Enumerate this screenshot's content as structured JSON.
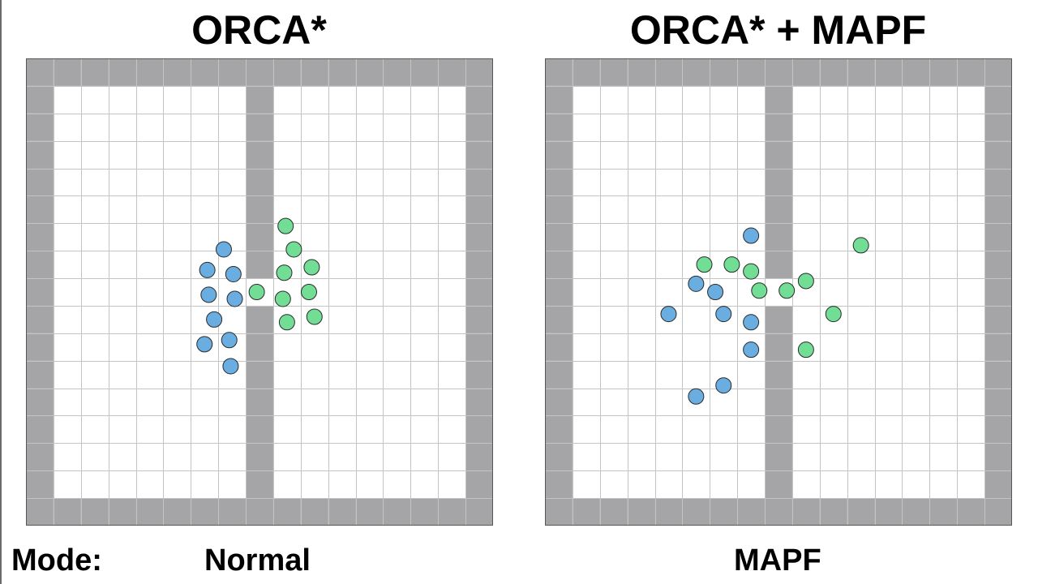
{
  "titles": {
    "left": "ORCA*",
    "right": "ORCA* + MAPF"
  },
  "footer": {
    "mode_label": "Mode:",
    "left_mode": "Normal",
    "right_mode": "MAPF"
  },
  "colors": {
    "wall": "#a5a5a8",
    "free": "#ffffff",
    "grid_line": "#c4c4c4",
    "border": "#555555",
    "agent_blue": "#6aade0",
    "agent_green": "#72dd95",
    "agent_outline": "#2a2a2a"
  },
  "map": {
    "cols": 17,
    "rows": 17,
    "note_cells": "walls: outer ring, center column 8 except gap at row 8"
  },
  "panels": [
    {
      "id": "left",
      "agents": [
        {
          "team": "blue",
          "col": 7.2,
          "row": 6.95
        },
        {
          "team": "blue",
          "col": 6.6,
          "row": 7.7
        },
        {
          "team": "blue",
          "col": 7.55,
          "row": 7.85
        },
        {
          "team": "blue",
          "col": 6.65,
          "row": 8.6
        },
        {
          "team": "blue",
          "col": 7.6,
          "row": 8.75
        },
        {
          "team": "blue",
          "col": 6.85,
          "row": 9.5
        },
        {
          "team": "blue",
          "col": 7.4,
          "row": 10.25
        },
        {
          "team": "blue",
          "col": 6.5,
          "row": 10.4
        },
        {
          "team": "blue",
          "col": 7.45,
          "row": 11.2
        },
        {
          "team": "green",
          "col": 9.45,
          "row": 6.1
        },
        {
          "team": "green",
          "col": 9.75,
          "row": 6.95
        },
        {
          "team": "green",
          "col": 10.4,
          "row": 7.6
        },
        {
          "team": "green",
          "col": 9.4,
          "row": 7.8
        },
        {
          "team": "green",
          "col": 8.4,
          "row": 8.5
        },
        {
          "team": "green",
          "col": 10.3,
          "row": 8.5
        },
        {
          "team": "green",
          "col": 9.35,
          "row": 8.75
        },
        {
          "team": "green",
          "col": 10.5,
          "row": 9.4
        },
        {
          "team": "green",
          "col": 9.5,
          "row": 9.6
        }
      ]
    },
    {
      "id": "right",
      "agents": [
        {
          "team": "blue",
          "col": 7.5,
          "row": 6.45
        },
        {
          "team": "blue",
          "col": 5.5,
          "row": 8.2
        },
        {
          "team": "blue",
          "col": 6.2,
          "row": 8.5
        },
        {
          "team": "blue",
          "col": 4.5,
          "row": 9.3
        },
        {
          "team": "blue",
          "col": 6.5,
          "row": 9.3
        },
        {
          "team": "blue",
          "col": 7.5,
          "row": 9.6
        },
        {
          "team": "blue",
          "col": 7.5,
          "row": 10.6
        },
        {
          "team": "blue",
          "col": 6.5,
          "row": 11.9
        },
        {
          "team": "blue",
          "col": 5.5,
          "row": 12.3
        },
        {
          "team": "green",
          "col": 11.5,
          "row": 6.8
        },
        {
          "team": "green",
          "col": 5.8,
          "row": 7.5
        },
        {
          "team": "green",
          "col": 6.8,
          "row": 7.5
        },
        {
          "team": "green",
          "col": 7.5,
          "row": 7.75
        },
        {
          "team": "green",
          "col": 9.5,
          "row": 8.1
        },
        {
          "team": "green",
          "col": 7.8,
          "row": 8.45
        },
        {
          "team": "green",
          "col": 8.8,
          "row": 8.45
        },
        {
          "team": "green",
          "col": 10.5,
          "row": 9.3
        },
        {
          "team": "green",
          "col": 9.5,
          "row": 10.6
        }
      ]
    }
  ]
}
